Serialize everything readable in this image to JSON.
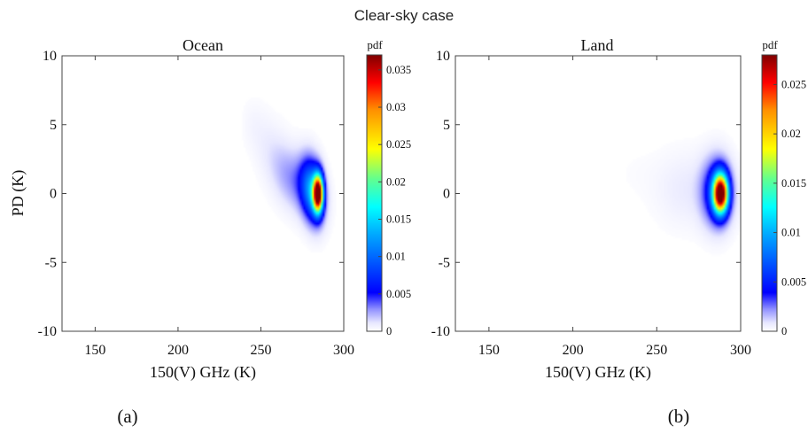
{
  "figure": {
    "suptitle": "Clear-sky case"
  },
  "chart_data": [
    {
      "type": "heatmap",
      "panel_label": "(a)",
      "title": "Ocean",
      "xlabel": "150(V) GHz (K)",
      "ylabel": "PD (K)",
      "xlim": [
        130,
        300
      ],
      "ylim": [
        -10,
        10
      ],
      "xticks": [
        150,
        200,
        250,
        300
      ],
      "yticks": [
        -10,
        -5,
        0,
        5,
        10
      ],
      "colorbar": {
        "title": "pdf",
        "min": 0,
        "max": 0.037,
        "ticks": [
          0,
          0.005,
          0.01,
          0.015,
          0.02,
          0.025,
          0.03,
          0.035
        ],
        "tick_labels": [
          "0",
          "0.005",
          "0.01",
          "0.015",
          "0.02",
          "0.025",
          "0.03",
          "0.035"
        ],
        "colormap": "jet-white-low"
      },
      "density_blobs": [
        {
          "x": 284.5,
          "y": 0.0,
          "sx": 2.0,
          "sy": 0.9,
          "rho": 0.0,
          "peak": 0.037
        },
        {
          "x": 281,
          "y": 0.2,
          "sx": 4.5,
          "sy": 1.5,
          "rho": -0.2,
          "peak": 0.012
        },
        {
          "x": 272,
          "y": 0.8,
          "sx": 9.0,
          "sy": 1.6,
          "rho": -0.35,
          "peak": 0.0028
        },
        {
          "x": 258,
          "y": 2.8,
          "sx": 9.0,
          "sy": 2.0,
          "rho": -0.5,
          "peak": 0.0009
        },
        {
          "x": 245,
          "y": 5.0,
          "sx": 4.5,
          "sy": 1.2,
          "rho": 0.0,
          "peak": 0.00025
        }
      ]
    },
    {
      "type": "heatmap",
      "panel_label": "(b)",
      "title": "Land",
      "xlabel": "150(V) GHz (K)",
      "ylabel": "",
      "xlim": [
        130,
        300
      ],
      "ylim": [
        -10,
        10
      ],
      "xticks": [
        150,
        200,
        250,
        300
      ],
      "yticks": [
        -10,
        -5,
        0,
        5,
        10
      ],
      "colorbar": {
        "title": "pdf",
        "min": 0,
        "max": 0.028,
        "ticks": [
          0,
          0.005,
          0.01,
          0.015,
          0.02,
          0.025
        ],
        "tick_labels": [
          "0",
          "0.005",
          "0.01",
          "0.015",
          "0.02",
          "0.025"
        ],
        "colormap": "jet-white-low"
      },
      "density_blobs": [
        {
          "x": 288,
          "y": 0.0,
          "sx": 3.0,
          "sy": 0.95,
          "rho": 0.0,
          "peak": 0.028
        },
        {
          "x": 286,
          "y": 0.1,
          "sx": 6.0,
          "sy": 1.6,
          "rho": 0.0,
          "peak": 0.006
        },
        {
          "x": 268,
          "y": 0.3,
          "sx": 13.0,
          "sy": 1.9,
          "rho": 0.0,
          "peak": 0.0007
        },
        {
          "x": 238,
          "y": 1.5,
          "sx": 11.0,
          "sy": 1.3,
          "rho": 0.0,
          "peak": 0.00012
        }
      ]
    }
  ]
}
